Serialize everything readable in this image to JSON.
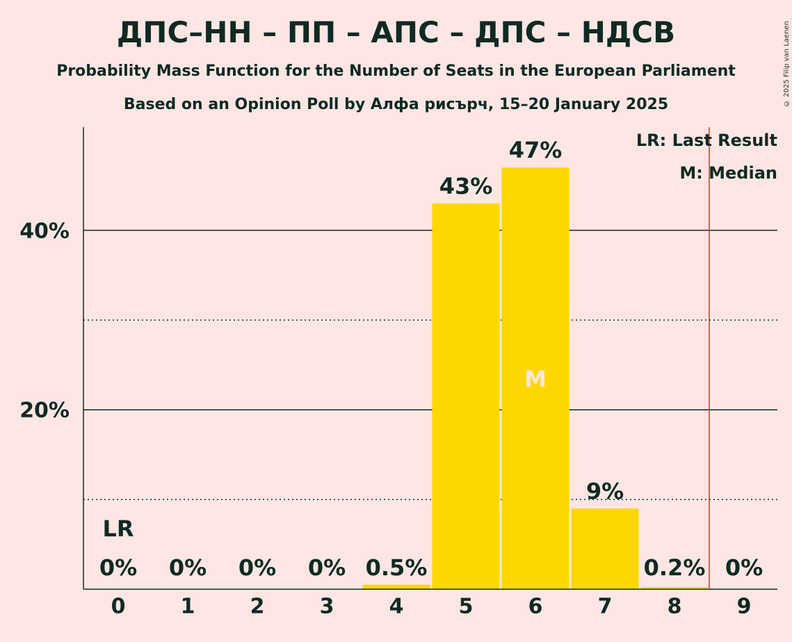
{
  "title": "ДПС–НН – ПП – АПС – ДПС – НДСВ",
  "subtitle": "Probability Mass Function for the Number of Seats in the European Parliament",
  "subtitle2": "Based on an Opinion Poll by Алфа рисърч, 15–20 January 2025",
  "copyright": "© 2025 Filip van Laenen",
  "legend": {
    "last_result": "LR: Last Result",
    "median": "M: Median"
  },
  "colors": {
    "background": "#FDE6E4",
    "bar": "#FFD700",
    "last_result_line": "#C0392B",
    "text": "#0f2a22"
  },
  "chart_data": {
    "type": "bar",
    "categories": [
      "0",
      "1",
      "2",
      "3",
      "4",
      "5",
      "6",
      "7",
      "8",
      "9"
    ],
    "values": [
      0,
      0,
      0,
      0,
      0.5,
      43,
      47,
      9,
      0.2,
      0
    ],
    "value_labels": [
      "0%",
      "0%",
      "0%",
      "0%",
      "0.5%",
      "43%",
      "47%",
      "9%",
      "0.2%",
      "0%"
    ],
    "yticks": [
      {
        "value": 20,
        "label": "20%"
      },
      {
        "value": 40,
        "label": "40%"
      }
    ],
    "minor_gridlines": [
      10,
      30
    ],
    "ylim": [
      0,
      51.5
    ],
    "last_result": {
      "seats": 0,
      "label": "LR",
      "line_after_category": 8.5
    },
    "median": {
      "seats": 6,
      "label": "M"
    },
    "legend_placement": "top-right"
  }
}
